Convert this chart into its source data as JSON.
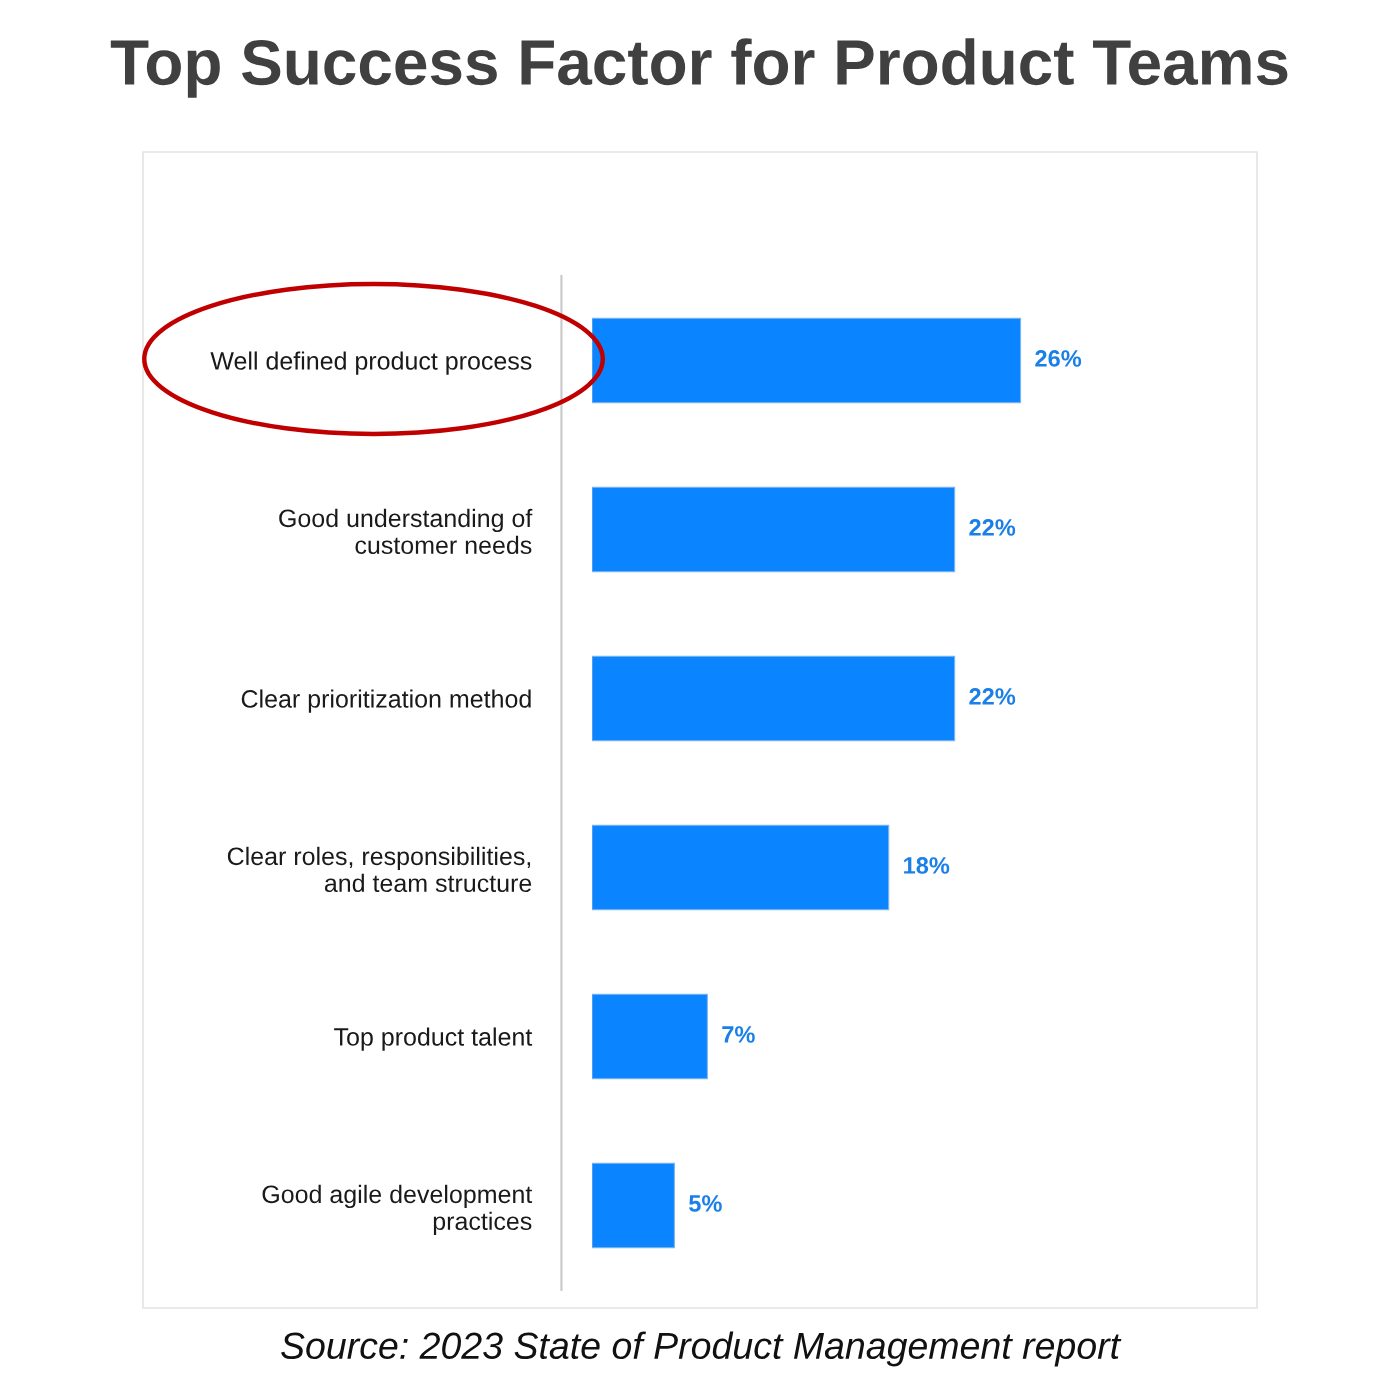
{
  "chart_data": {
    "type": "bar",
    "orientation": "horizontal",
    "title": "Top Success Factor for Product Teams",
    "categories": [
      "Well defined product process",
      "Good understanding of\ncustomer needs",
      "Clear prioritization method",
      "Clear roles, responsibilities,\nand team structure",
      "Top product talent",
      "Good agile development\npractices"
    ],
    "values": [
      26,
      22,
      22,
      18,
      7,
      5
    ],
    "value_labels": [
      "26%",
      "22%",
      "22%",
      "18%",
      "7%",
      "5%"
    ],
    "color": "#0a84ff",
    "tick_labels": "y",
    "annotations": [
      "Source: 2023 State of Product Management report"
    ]
  }
}
